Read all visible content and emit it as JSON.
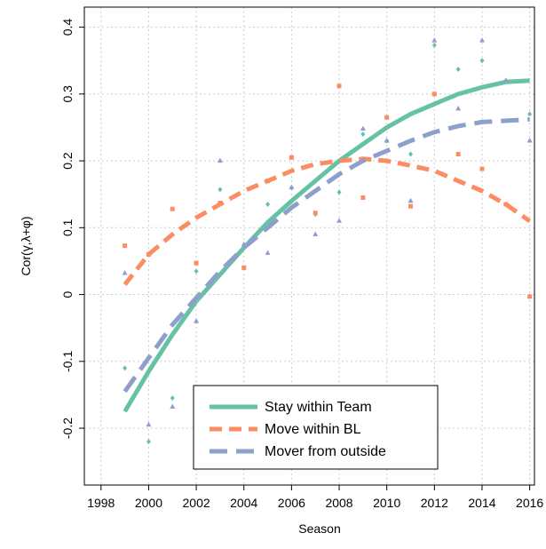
{
  "chart_data": {
    "type": "scatter-smooth",
    "xlabel": "Season",
    "ylabel": "Cor(γ,λ+φ)",
    "x": [
      1999,
      2000,
      2001,
      2002,
      2003,
      2004,
      2005,
      2006,
      2007,
      2008,
      2009,
      2010,
      2011,
      2012,
      2013,
      2014,
      2015,
      2016
    ],
    "xlim": [
      1997.3,
      2016.2
    ],
    "xticks": [
      1998,
      2000,
      2002,
      2004,
      2006,
      2008,
      2010,
      2012,
      2014,
      2016
    ],
    "ylim": [
      -0.285,
      0.43
    ],
    "yticks": [
      -0.2,
      -0.1,
      0,
      0.1,
      0.2,
      0.3,
      0.4
    ],
    "grid": true,
    "legend": "bottom",
    "series": [
      {
        "name": "Stay within Team",
        "color": "#66c2a5",
        "marker": "diamond",
        "dash": "solid",
        "values": [
          -0.11,
          -0.22,
          -0.155,
          0.035,
          0.157,
          0.07,
          0.135,
          0.16,
          0.12,
          0.153,
          0.24,
          0.23,
          0.21,
          0.373,
          0.337,
          0.35,
          0.32,
          0.27
        ],
        "trend": [
          -0.175,
          -0.115,
          -0.06,
          -0.01,
          0.03,
          0.07,
          0.108,
          0.14,
          0.17,
          0.2,
          0.225,
          0.25,
          0.27,
          0.285,
          0.3,
          0.31,
          0.318,
          0.32
        ]
      },
      {
        "name": "Move within BL",
        "color": "#fc8d62",
        "marker": "square",
        "dash": "dashed",
        "values": [
          0.073,
          0.06,
          0.128,
          0.047,
          0.137,
          0.04,
          0.17,
          0.205,
          0.122,
          0.312,
          0.145,
          0.265,
          0.132,
          0.3,
          0.21,
          0.188,
          0.135,
          -0.003
        ],
        "trend": [
          0.015,
          0.06,
          0.09,
          0.115,
          0.135,
          0.155,
          0.17,
          0.185,
          0.195,
          0.2,
          0.203,
          0.2,
          0.193,
          0.185,
          0.17,
          0.155,
          0.135,
          0.11
        ]
      },
      {
        "name": "Mover from outside",
        "color": "#8da0cb",
        "marker": "triangle",
        "dash": "longdash",
        "values": [
          0.032,
          -0.195,
          -0.168,
          -0.04,
          0.2,
          0.075,
          0.062,
          0.16,
          0.09,
          0.11,
          0.248,
          0.23,
          0.14,
          0.38,
          0.278,
          0.38,
          0.32,
          0.23
        ],
        "trend": [
          -0.145,
          -0.095,
          -0.045,
          -0.005,
          0.035,
          0.07,
          0.1,
          0.13,
          0.155,
          0.18,
          0.2,
          0.215,
          0.23,
          0.243,
          0.252,
          0.258,
          0.26,
          0.262
        ]
      }
    ]
  }
}
